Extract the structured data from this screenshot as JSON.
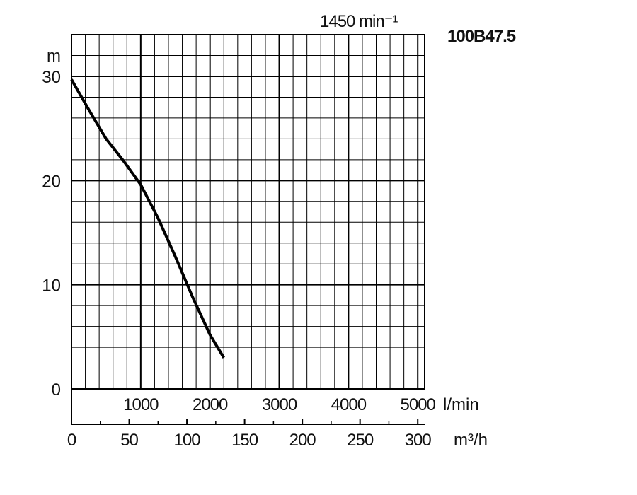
{
  "chart_data": {
    "type": "line",
    "title": "100B47.5",
    "speed_label": "1450 min⁻¹",
    "ylabel": "m",
    "flow_unit_primary": "l/min",
    "flow_unit_secondary": "m³/h",
    "xlim_lmin": [
      0,
      5100
    ],
    "ylim": [
      0,
      30
    ],
    "yticks": [
      "0",
      "10",
      "20",
      "30"
    ],
    "xticks_lmin": [
      "1000",
      "2000",
      "3000",
      "4000",
      "5000"
    ],
    "xticks_m3h": [
      "0",
      "50",
      "100",
      "150",
      "200",
      "250",
      "300"
    ],
    "grid": true,
    "series": [
      {
        "x_lmin": [
          0,
          250,
          500,
          750,
          1000,
          1250,
          1500,
          1750,
          2000,
          2200
        ],
        "y": [
          29.7,
          26.8,
          24.0,
          21.9,
          19.6,
          16.4,
          12.7,
          8.8,
          5.2,
          3.0
        ]
      }
    ],
    "colors": {
      "line": "#000000",
      "grid": "#000000"
    }
  }
}
